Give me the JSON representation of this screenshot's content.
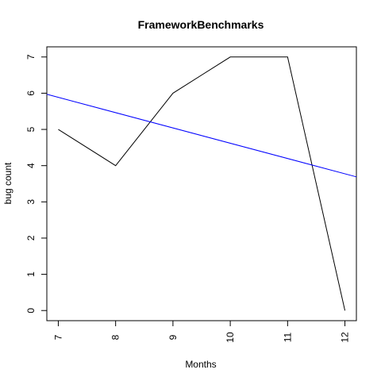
{
  "chart_data": {
    "type": "line",
    "title": "FrameworkBenchmarks",
    "xlabel": "Months",
    "ylabel": "bug count",
    "xlim": [
      6.8,
      12.2
    ],
    "ylim": [
      -0.28,
      7.28
    ],
    "x_ticks": [
      7,
      8,
      9,
      10,
      11,
      12
    ],
    "y_ticks": [
      0,
      1,
      2,
      3,
      4,
      5,
      6,
      7
    ],
    "grid": false,
    "series": [
      {
        "x": [
          7,
          8,
          9,
          10,
          11,
          12
        ],
        "values": [
          5,
          4,
          6,
          7,
          7,
          0
        ],
        "color": "#000000"
      }
    ],
    "trend_line": {
      "x": [
        6.8,
        12.2
      ],
      "values": [
        5.97,
        3.69
      ],
      "color": "#0000ff"
    }
  }
}
